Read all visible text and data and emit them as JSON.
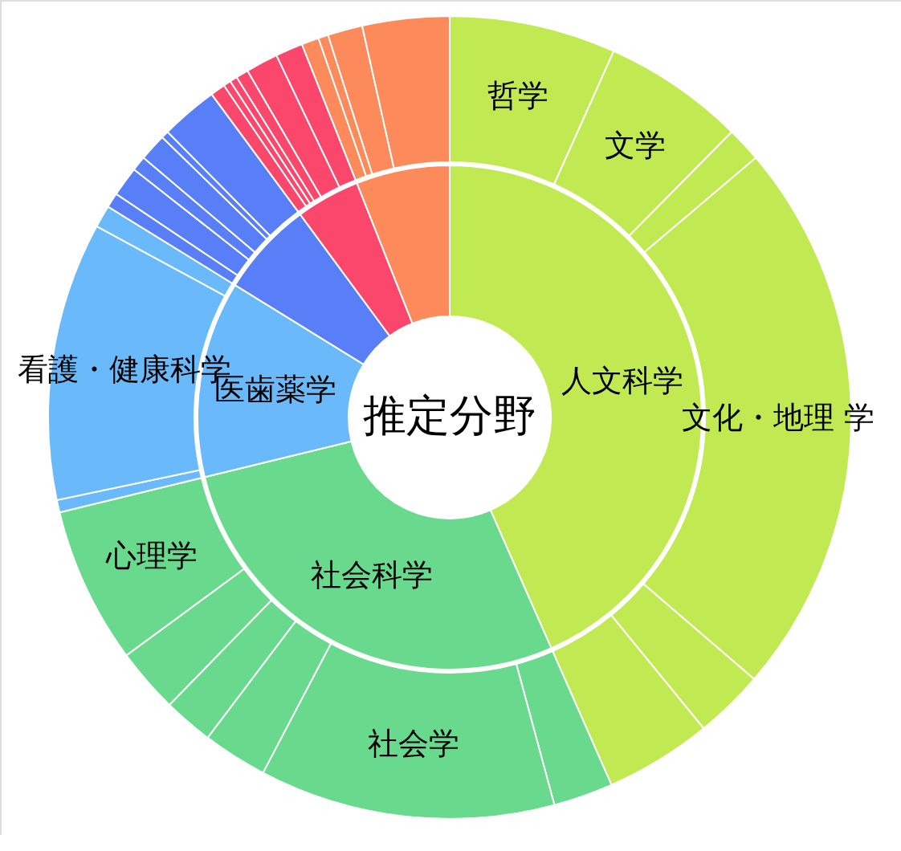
{
  "chart_data": {
    "type": "donut",
    "title": "推定分野",
    "series": [
      {
        "values": [
          43.4,
          27.8,
          12.6,
          6.1,
          4.1,
          6.0
        ],
        "value_labels": [
          "人文科学",
          "社会科学",
          "医歯薬学",
          null,
          null,
          null
        ],
        "colors": [
          "#c1ea52",
          "#69da8d",
          "#6abafb",
          "#597ff8",
          "#fb476c",
          "#fd8a5a"
        ]
      },
      {
        "values": [
          6.7,
          5.7,
          1.4,
          22.5,
          2.8,
          4.3,
          2.4,
          11.9,
          2.6,
          2.0,
          2.6,
          6.3,
          0.5,
          11.2,
          0.9,
          0.6,
          1.2,
          0.6,
          1.1,
          0.3,
          2.3,
          0.6,
          0.3,
          0.3,
          0.5,
          1.3,
          1.1,
          0.7,
          0.4,
          1.4,
          3.5
        ],
        "value_labels": [
          "哲学",
          "文学",
          null,
          "文化・地理 学",
          null,
          null,
          null,
          "社会学",
          null,
          null,
          null,
          "心理学",
          null,
          "看護・健康科学",
          null,
          null,
          null,
          null,
          null,
          null,
          null,
          null,
          null,
          null,
          null,
          null,
          null,
          null,
          null,
          null,
          null
        ],
        "colors": [
          "#c1ea52",
          "#c1ea52",
          "#c1ea52",
          "#c1ea52",
          "#c1ea52",
          "#c1ea52",
          "#69da8d",
          "#69da8d",
          "#69da8d",
          "#69da8d",
          "#69da8d",
          "#69da8d",
          "#6abafb",
          "#6abafb",
          "#6abafb",
          "#597ff8",
          "#597ff8",
          "#597ff8",
          "#597ff8",
          "#597ff8",
          "#597ff8",
          "#fb476c",
          "#fb476c",
          "#fb476c",
          "#fb476c",
          "#fb476c",
          "#fb476c",
          "#fd8a5a",
          "#fd8a5a",
          "#fd8a5a",
          "#fd8a5a"
        ]
      }
    ]
  }
}
